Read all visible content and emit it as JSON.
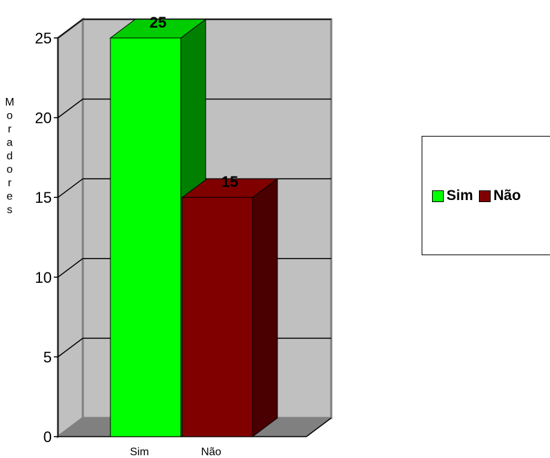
{
  "chart_data": {
    "type": "bar",
    "categories": [
      "Sim",
      "Não"
    ],
    "values": [
      25,
      15
    ],
    "ylabel": "Moradores",
    "ylim": [
      0,
      25
    ],
    "yticks": [
      0,
      5,
      10,
      15,
      20,
      25
    ],
    "grid": true,
    "legend_position": "right",
    "series": [
      {
        "name": "Sim",
        "value": 25,
        "color": "#00ff00"
      },
      {
        "name": "Não",
        "value": 15,
        "color": "#800000"
      }
    ]
  }
}
